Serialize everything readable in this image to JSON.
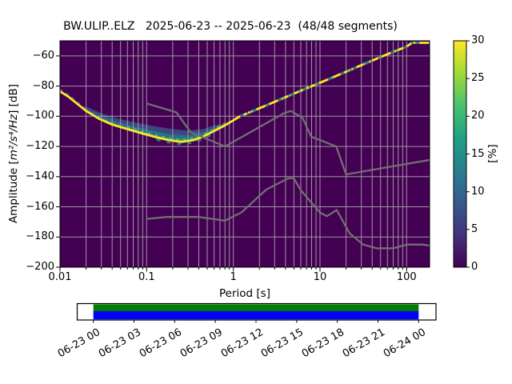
{
  "chart_data": {
    "type": "heatmap",
    "title": "BW.ULIP..ELZ   2025-06-23 -- 2025-06-23  (48/48 segments)",
    "xlabel": "Period [s]",
    "ylabel_parts": {
      "pre": "Amplitude [",
      "math": "m²/s⁴/Hz",
      "post": "] [dB]"
    },
    "xscale": "log",
    "xlim": [
      0.01,
      184
    ],
    "ylim": [
      -200,
      -50
    ],
    "grid": true,
    "background": "#440154",
    "x_ticks": [
      0.01,
      0.1,
      1,
      10,
      100
    ],
    "x_tick_labels": [
      "0.01",
      "0.1",
      "1",
      "10",
      "100"
    ],
    "y_ticks": [
      -60,
      -80,
      -100,
      -120,
      -140,
      -160,
      -180,
      -200
    ],
    "y_tick_labels": [
      "−60",
      "−80",
      "−100",
      "−120",
      "−140",
      "−160",
      "−180",
      "−200"
    ],
    "colorbar": {
      "label": "[%]",
      "lim": [
        0,
        30
      ],
      "ticks": [
        0,
        5,
        10,
        15,
        20,
        25,
        30
      ],
      "tick_labels": [
        "0",
        "5",
        "10",
        "15",
        "20",
        "25",
        "30"
      ],
      "colormap": "viridis",
      "gradient": [
        "#440154",
        "#46327e",
        "#365c8d",
        "#277f8e",
        "#1fa187",
        "#4ac16d",
        "#a0da39",
        "#fde725"
      ]
    },
    "series": [
      {
        "name": "psd-mode",
        "label": "PPSD mode (highest probability power)",
        "color": "#fde725",
        "points": [
          [
            0.01,
            -83.5
          ],
          [
            0.0125,
            -87
          ],
          [
            0.016,
            -92
          ],
          [
            0.02,
            -96.5
          ],
          [
            0.028,
            -101.5
          ],
          [
            0.04,
            -105.5
          ],
          [
            0.06,
            -108.5
          ],
          [
            0.09,
            -111.5
          ],
          [
            0.13,
            -114
          ],
          [
            0.18,
            -115.8
          ],
          [
            0.25,
            -117
          ],
          [
            0.35,
            -115.8
          ],
          [
            0.45,
            -113.5
          ],
          [
            0.6,
            -109.8
          ],
          [
            0.8,
            -106
          ],
          [
            1.2,
            -100
          ],
          [
            2,
            -94.7
          ],
          [
            3.5,
            -88.8
          ],
          [
            6,
            -83.1
          ],
          [
            10,
            -77.8
          ],
          [
            18,
            -71.6
          ],
          [
            32,
            -65.5
          ],
          [
            56,
            -59.6
          ],
          [
            100,
            -53.8
          ],
          [
            115,
            -51.3
          ],
          [
            184,
            -51.3
          ]
        ]
      },
      {
        "name": "psd-band",
        "label": "PPSD probability spread (upper envelope / mode)",
        "points": [
          [
            0.02,
            -93.5,
            -96.5
          ],
          [
            0.03,
            -98,
            -102
          ],
          [
            0.05,
            -102,
            -107.2
          ],
          [
            0.08,
            -104.5,
            -110.8
          ],
          [
            0.12,
            -106.5,
            -113.5
          ],
          [
            0.2,
            -108.5,
            -116.3
          ],
          [
            0.3,
            -109.5,
            -116.5
          ],
          [
            0.45,
            -108.5,
            -113.5
          ],
          [
            0.6,
            -106,
            -109.8
          ],
          [
            0.8,
            -104.8,
            -106
          ],
          [
            1.0,
            -102,
            -102.8
          ]
        ]
      },
      {
        "name": "noise-model-high",
        "label": "Peterson NHNM",
        "color": "#707070",
        "points": [
          [
            0.1,
            -91.5
          ],
          [
            0.22,
            -97.4
          ],
          [
            0.32,
            -110.5
          ],
          [
            0.8,
            -120
          ],
          [
            3.8,
            -98.1
          ],
          [
            4.6,
            -96.5
          ],
          [
            6.3,
            -101
          ],
          [
            7.9,
            -113.5
          ],
          [
            15.4,
            -120
          ],
          [
            20,
            -138.5
          ],
          [
            184,
            -128.9
          ]
        ]
      },
      {
        "name": "noise-model-low",
        "label": "Peterson NLNM",
        "color": "#707070",
        "points": [
          [
            0.1,
            -168
          ],
          [
            0.17,
            -166.7
          ],
          [
            0.4,
            -166.7
          ],
          [
            0.8,
            -169.2
          ],
          [
            1.24,
            -163.7
          ],
          [
            2.4,
            -148.6
          ],
          [
            4.3,
            -141.1
          ],
          [
            5,
            -141.1
          ],
          [
            6,
            -149
          ],
          [
            10,
            -163.8
          ],
          [
            12,
            -166.2
          ],
          [
            15.6,
            -162.1
          ],
          [
            21.9,
            -177.5
          ],
          [
            31.6,
            -185
          ],
          [
            45,
            -187.5
          ],
          [
            70,
            -187.5
          ],
          [
            101,
            -185
          ],
          [
            154,
            -185
          ],
          [
            184,
            -185.7
          ]
        ]
      }
    ]
  },
  "timeline": {
    "labels": [
      "06-23 00",
      "06-23 03",
      "06-23 06",
      "06-23 09",
      "06-23 12",
      "06-23 15",
      "06-23 18",
      "06-23 21",
      "06-24 00"
    ],
    "coverage_color": "#008000",
    "processed_color": "#0000ff",
    "box_color": "#ffffff"
  },
  "colors": {
    "grid": "#b0b0b0",
    "frame": "#000000",
    "speckle_teal": "#2a788e",
    "speckle_green": "#44bf70",
    "speckle_blue": "#355f8d"
  }
}
